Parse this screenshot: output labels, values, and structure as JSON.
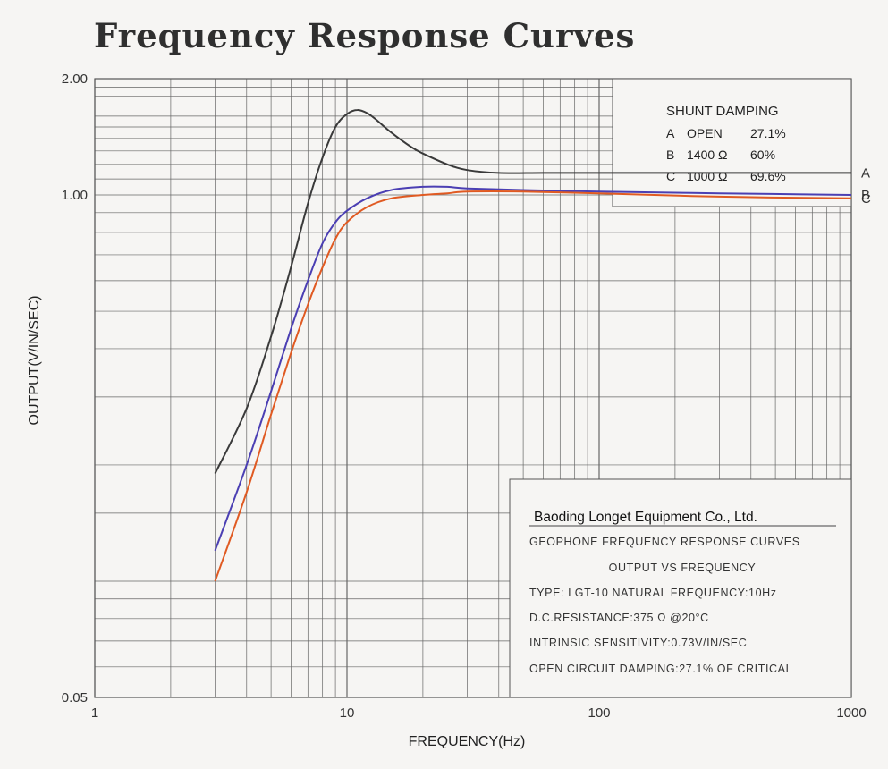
{
  "chart_data": {
    "type": "line",
    "title": "Frequency Response Curves",
    "xlabel": "FREQUENCY(Hz)",
    "ylabel": "OUTPUT(V/IN/SEC)",
    "xscale": "log",
    "yscale": "log",
    "xlim": [
      1,
      1000
    ],
    "ylim": [
      0.05,
      2.0
    ],
    "x_tick_labels": [
      "1",
      "10",
      "100",
      "1000"
    ],
    "y_tick_labels": [
      "0.05",
      "1.00",
      "2.00"
    ],
    "grid": true,
    "legend": {
      "title": "SHUNT DAMPING",
      "placement": "top-right",
      "entries": [
        {
          "key": "A",
          "resistance": "OPEN",
          "damping": "27.1%"
        },
        {
          "key": "B",
          "resistance": "1400 Ω",
          "damping": "60%"
        },
        {
          "key": "C",
          "resistance": "1000 Ω",
          "damping": "69.6%"
        }
      ]
    },
    "series": [
      {
        "name": "A",
        "color": "#3a3a3a",
        "x": [
          3,
          4,
          5,
          6,
          7,
          8,
          9,
          10,
          11,
          12,
          13,
          15,
          18,
          20,
          25,
          30,
          40,
          60,
          100,
          300,
          1000
        ],
        "y": [
          0.19,
          0.28,
          0.43,
          0.65,
          0.95,
          1.25,
          1.5,
          1.62,
          1.66,
          1.63,
          1.57,
          1.45,
          1.33,
          1.28,
          1.2,
          1.16,
          1.14,
          1.14,
          1.14,
          1.14,
          1.14
        ]
      },
      {
        "name": "B",
        "color": "#4b3fb3",
        "x": [
          3,
          4,
          5,
          6,
          7,
          8,
          9,
          10,
          12,
          15,
          20,
          25,
          30,
          50,
          100,
          300,
          1000
        ],
        "y": [
          0.12,
          0.2,
          0.31,
          0.45,
          0.6,
          0.75,
          0.85,
          0.91,
          0.98,
          1.03,
          1.05,
          1.05,
          1.04,
          1.03,
          1.02,
          1.01,
          1.0
        ]
      },
      {
        "name": "C",
        "color": "#e05a22",
        "x": [
          3,
          4,
          5,
          6,
          7,
          8,
          9,
          10,
          12,
          15,
          20,
          25,
          30,
          50,
          100,
          300,
          1000
        ],
        "y": [
          0.1,
          0.17,
          0.27,
          0.39,
          0.52,
          0.65,
          0.77,
          0.85,
          0.93,
          0.98,
          1.0,
          1.01,
          1.02,
          1.02,
          1.01,
          0.99,
          0.98
        ]
      }
    ]
  },
  "info_box": {
    "company": "Baoding Longet Equipment Co., Ltd.",
    "lines": [
      "GEOPHONE  FREQUENCY  RESPONSE  CURVES",
      "OUTPUT  VS  FREQUENCY",
      "TYPE:        LGT-10    NATURAL FREQUENCY:10Hz",
      "D.C.RESISTANCE:375 Ω @20°C",
      "INTRINSIC SENSITIVITY:0.73V/IN/SEC",
      "OPEN  CIRCUIT  DAMPING:27.1% OF  CRITICAL"
    ]
  }
}
